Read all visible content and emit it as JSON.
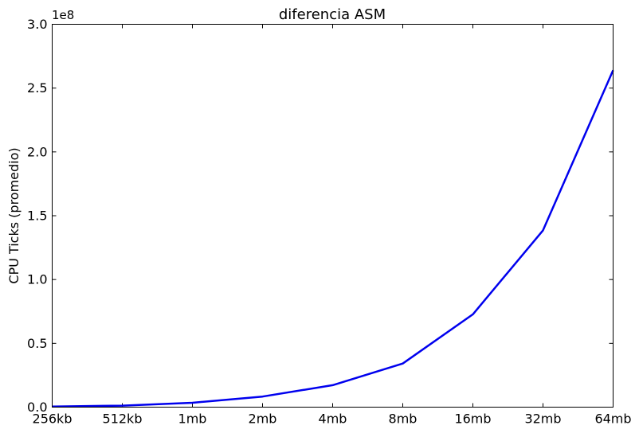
{
  "chart_data": {
    "type": "line",
    "title": "diferencia ASM",
    "xlabel": "",
    "ylabel": "CPU Ticks (promedio)",
    "y_offset_label": "1e8",
    "categories": [
      "256kb",
      "512kb",
      "1mb",
      "2mb",
      "4mb",
      "8mb",
      "16mb",
      "32mb",
      "64mb"
    ],
    "series": [
      {
        "values": [
          500000,
          1200000,
          3400000,
          8300000,
          17200000,
          34200000,
          72700000,
          138500000,
          264000000
        ],
        "color": "#0000ee"
      }
    ],
    "ylim": [
      0,
      300000000
    ],
    "yticks": [
      0,
      50000000,
      100000000,
      150000000,
      200000000,
      250000000,
      300000000
    ],
    "ytick_labels": [
      "0.0",
      "0.5",
      "1.0",
      "1.5",
      "2.0",
      "2.5",
      "3.0"
    ],
    "grid": false,
    "legend": "none"
  }
}
